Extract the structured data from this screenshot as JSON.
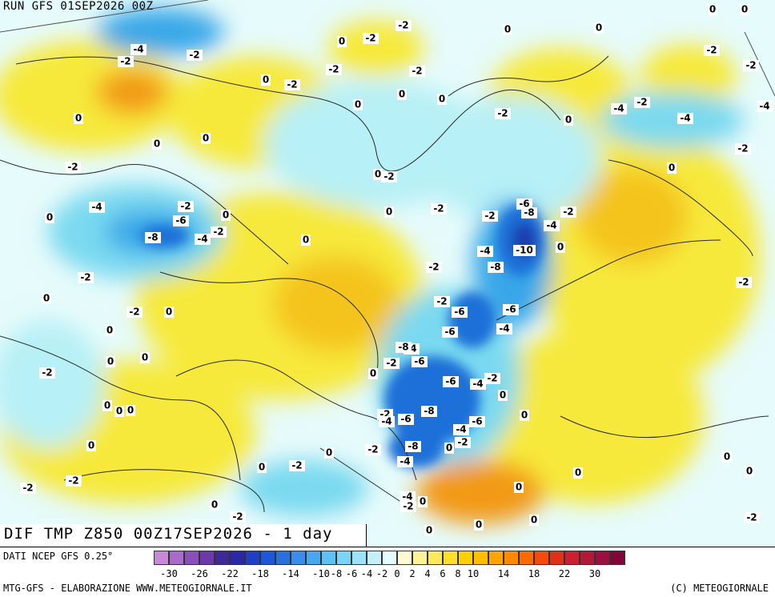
{
  "run_label": "RUN GFS 01SEP2026 00Z",
  "title": "DIF TMP Z850 00Z17SEP2026 - 1 day",
  "footer": {
    "data_source": "DATI NCEP GFS 0.25°",
    "elaboration": "MTG-GFS - ELABORAZIONE WWW.METEOGIORNALE.IT",
    "copyright": "(C) METEOGIORNALE"
  },
  "colors": {
    "warm": "#f7e93a",
    "warm_deep": "#f4c41b",
    "warm_hot": "#f29a16",
    "neutral": "#e6fbfb",
    "cool_light": "#b7f0f6",
    "cool": "#7ad9f0",
    "cold": "#38a7e8",
    "cold_deep": "#1f6fd8",
    "cold_core": "#1b3fb0",
    "border": "#2a2a2a"
  },
  "legend": {
    "colors": [
      "#c88ad8",
      "#a86bc9",
      "#8a4fb8",
      "#6c3aa8",
      "#3d2a98",
      "#2a28a8",
      "#1f3fc8",
      "#1f55d8",
      "#2a6fe0",
      "#3b8ceb",
      "#4aa6f0",
      "#5fc0f4",
      "#7ad4f6",
      "#9de3f8",
      "#c4f0fa",
      "#e6fbfb",
      "#fffbd0",
      "#fff39a",
      "#ffe95a",
      "#ffdf2a",
      "#ffd000",
      "#ffbe00",
      "#ffa500",
      "#ff8a00",
      "#ff6a00",
      "#f44a10",
      "#e0301a",
      "#cc2030",
      "#b41838",
      "#9a1040",
      "#800838"
    ],
    "tick_labels": [
      "-30",
      "-26",
      "-22",
      "-18",
      "-14",
      "-10",
      "-8",
      "-6",
      "-4",
      "-2",
      "0",
      "2",
      "4",
      "6",
      "8",
      "10",
      "14",
      "18",
      "22",
      "30"
    ]
  },
  "map_labels": [
    {
      "t": "-4"
    },
    {
      "t": "-2"
    },
    {
      "t": "-2"
    },
    {
      "t": "-2"
    },
    {
      "t": "0"
    },
    {
      "t": "-2"
    },
    {
      "t": "0"
    },
    {
      "t": "0"
    },
    {
      "t": "0"
    },
    {
      "t": "-2"
    },
    {
      "t": "0"
    },
    {
      "t": "-2"
    },
    {
      "t": "-2"
    },
    {
      "t": "0"
    },
    {
      "t": "0"
    },
    {
      "t": "-2"
    },
    {
      "t": "0"
    },
    {
      "t": "-2"
    },
    {
      "t": "0"
    },
    {
      "t": "-2"
    },
    {
      "t": "-4"
    },
    {
      "t": "-2"
    },
    {
      "t": "-4"
    },
    {
      "t": "-4"
    },
    {
      "t": "0"
    },
    {
      "t": "0"
    },
    {
      "t": "0"
    },
    {
      "t": "0"
    },
    {
      "t": "-2"
    },
    {
      "t": "-4"
    },
    {
      "t": "-6"
    },
    {
      "t": "-2"
    },
    {
      "t": "-8"
    },
    {
      "t": "-4"
    },
    {
      "t": "-2"
    },
    {
      "t": "0"
    },
    {
      "t": "0"
    },
    {
      "t": "-2"
    },
    {
      "t": "0"
    },
    {
      "t": "-2"
    },
    {
      "t": "-6"
    },
    {
      "t": "-8"
    },
    {
      "t": "-2"
    },
    {
      "t": "-4"
    },
    {
      "t": "-2"
    },
    {
      "t": "-4"
    },
    {
      "t": "-10"
    },
    {
      "t": "0"
    },
    {
      "t": "0"
    },
    {
      "t": "-8"
    },
    {
      "t": "-2"
    },
    {
      "t": "-2"
    },
    {
      "t": "0"
    },
    {
      "t": "-2"
    },
    {
      "t": "0"
    },
    {
      "t": "0"
    },
    {
      "t": "-2"
    },
    {
      "t": "-6"
    },
    {
      "t": "-6"
    },
    {
      "t": "-4"
    },
    {
      "t": "-6"
    },
    {
      "t": "-4"
    },
    {
      "t": "-6"
    },
    {
      "t": "-8"
    },
    {
      "t": "-2"
    },
    {
      "t": "0"
    },
    {
      "t": "0"
    },
    {
      "t": "0"
    },
    {
      "t": "0"
    },
    {
      "t": "0"
    },
    {
      "t": "-2"
    },
    {
      "t": "-6"
    },
    {
      "t": "-4"
    },
    {
      "t": "-2"
    },
    {
      "t": "0"
    },
    {
      "t": "-2"
    },
    {
      "t": "-4"
    },
    {
      "t": "-6"
    },
    {
      "t": "-8"
    },
    {
      "t": "-6"
    },
    {
      "t": "0"
    },
    {
      "t": "-4"
    },
    {
      "t": "-2"
    },
    {
      "t": "-8"
    },
    {
      "t": "-2"
    },
    {
      "t": "0"
    },
    {
      "t": "0"
    },
    {
      "t": "0"
    },
    {
      "t": "-2"
    },
    {
      "t": "-4"
    },
    {
      "t": "0"
    },
    {
      "t": "0"
    },
    {
      "t": "0"
    },
    {
      "t": "-2"
    },
    {
      "t": "0"
    },
    {
      "t": "-2"
    },
    {
      "t": "-2"
    },
    {
      "t": "0"
    },
    {
      "t": "-4"
    },
    {
      "t": "-2"
    },
    {
      "t": "0"
    },
    {
      "t": "0"
    },
    {
      "t": "0"
    },
    {
      "t": "0"
    },
    {
      "t": "0"
    },
    {
      "t": "-2"
    },
    {
      "t": "-2"
    },
    {
      "t": "-2"
    },
    {
      "t": "0"
    },
    {
      "t": "0"
    },
    {
      "t": "0"
    }
  ]
}
